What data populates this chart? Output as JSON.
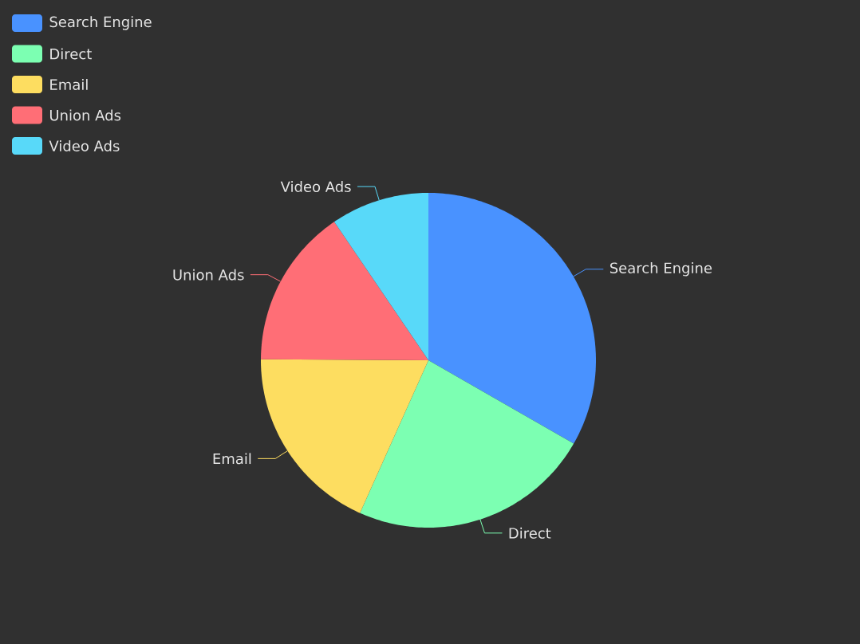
{
  "chart_data": {
    "type": "pie",
    "categories": [
      "Search Engine",
      "Direct",
      "Email",
      "Union Ads",
      "Video Ads"
    ],
    "values": [
      33.3,
      23.4,
      18.4,
      15.4,
      9.5
    ],
    "colors": [
      "#4992ff",
      "#7cffb2",
      "#fddd60",
      "#ff6e76",
      "#58d9f9"
    ],
    "legend": "top left"
  }
}
